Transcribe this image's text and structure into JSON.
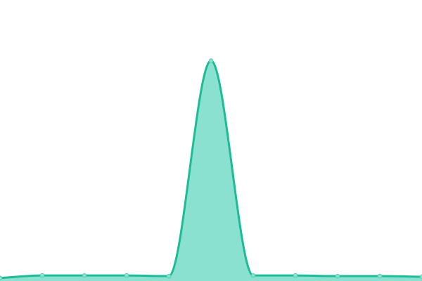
{
  "chart_data": {
    "type": "area",
    "x": [
      0,
      1,
      2,
      3,
      4,
      5,
      6,
      7,
      8,
      9,
      10
    ],
    "series": [
      {
        "values": [
          0.2,
          0.6,
          0.6,
          0.6,
          0.5,
          35.0,
          0.6,
          0.6,
          0.5,
          0.5,
          0.4
        ]
      }
    ],
    "ylim": [
      0,
      40
    ],
    "xlim": [
      0,
      10
    ],
    "smooth": true,
    "grid": false,
    "axes_visible": false,
    "legend": "none",
    "colors": {
      "line": "#1bbc96",
      "fill": "#8ae1d0",
      "marker_fill": "#8ae1d0",
      "marker_stroke": "#52cfb1"
    }
  }
}
